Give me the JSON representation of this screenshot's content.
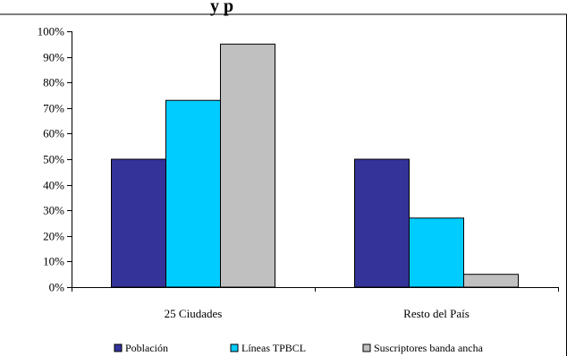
{
  "chart_data": {
    "type": "bar",
    "title_fragment": "y     p",
    "categories": [
      "25 Ciudades",
      "Resto del País"
    ],
    "series": [
      {
        "name": "Población",
        "color": "#333399",
        "values": [
          50,
          50
        ]
      },
      {
        "name": "Líneas TPBCL",
        "color": "#00ccff",
        "values": [
          73,
          27
        ]
      },
      {
        "name": "Suscriptores banda ancha",
        "color": "#c0c0c0",
        "values": [
          95,
          5
        ]
      }
    ],
    "ylim": [
      0,
      100
    ],
    "ytick_step": 10,
    "ytick_labels": [
      "0%",
      "10%",
      "20%",
      "30%",
      "40%",
      "50%",
      "60%",
      "70%",
      "80%",
      "90%",
      "100%"
    ],
    "grid": false,
    "legend_position": "bottom"
  }
}
